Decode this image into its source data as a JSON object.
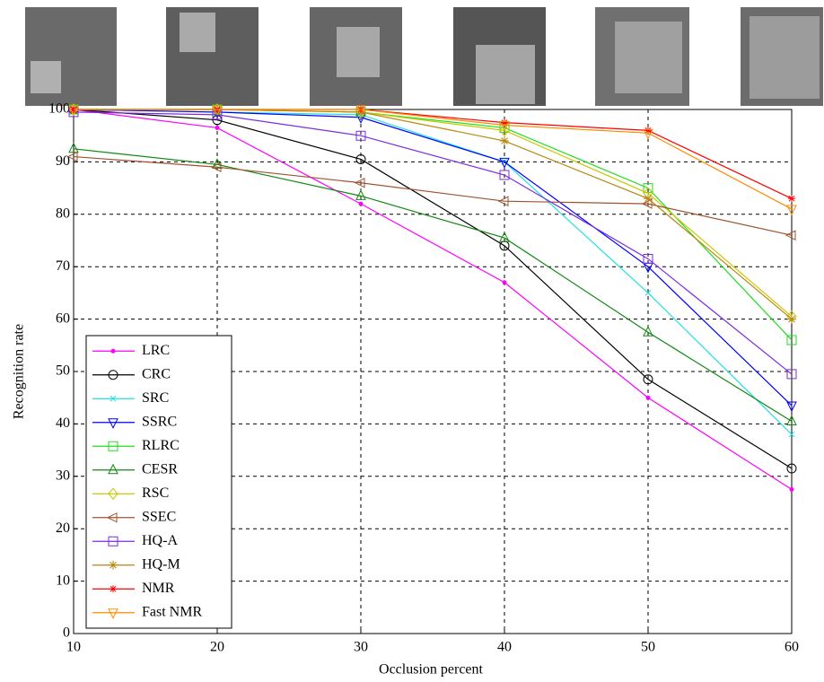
{
  "chart_data": {
    "type": "line",
    "xlabel": "Occlusion percent",
    "ylabel": "Recognition rate",
    "x": [
      10,
      20,
      30,
      40,
      50,
      60
    ],
    "xlim": [
      10,
      60
    ],
    "ylim": [
      0,
      100
    ],
    "xticks": [
      10,
      20,
      30,
      40,
      50,
      60
    ],
    "yticks": [
      0,
      10,
      20,
      30,
      40,
      50,
      60,
      70,
      80,
      90,
      100
    ],
    "grid": true,
    "legend": "lower left",
    "series": [
      {
        "name": "LRC",
        "color": "#ff00ff",
        "marker": "dot",
        "values": [
          100,
          96.5,
          82,
          67,
          45,
          27.5
        ]
      },
      {
        "name": "CRC",
        "color": "#000000",
        "marker": "circle",
        "values": [
          100,
          98,
          90.5,
          74,
          48.5,
          31.5
        ]
      },
      {
        "name": "SRC",
        "color": "#22e0e0",
        "marker": "x",
        "values": [
          100,
          99.5,
          99,
          90,
          65,
          38
        ]
      },
      {
        "name": "SSRC",
        "color": "#0000ff",
        "marker": "tri-down",
        "values": [
          100,
          99.5,
          98.5,
          90,
          70,
          43.5
        ]
      },
      {
        "name": "RLRC",
        "color": "#22dd22",
        "marker": "square",
        "values": [
          100,
          100,
          99.5,
          96.5,
          85,
          56
        ]
      },
      {
        "name": "CESR",
        "color": "#118811",
        "marker": "tri-up",
        "values": [
          92.5,
          89.5,
          83.5,
          75.5,
          57.5,
          40.5
        ]
      },
      {
        "name": "RSC",
        "color": "#c8c800",
        "marker": "diamond",
        "values": [
          100,
          100,
          99.5,
          96,
          84,
          60.5
        ]
      },
      {
        "name": "SSEC",
        "color": "#a0522d",
        "marker": "tri-left",
        "values": [
          91,
          89,
          86,
          82.5,
          82,
          76
        ]
      },
      {
        "name": "HQ-A",
        "color": "#7b2be0",
        "marker": "square",
        "values": [
          99.5,
          99,
          95,
          87.5,
          71.5,
          49.5
        ]
      },
      {
        "name": "HQ-M",
        "color": "#b8860b",
        "marker": "star",
        "values": [
          100,
          100,
          99.5,
          94,
          83,
          60
        ]
      },
      {
        "name": "NMR",
        "color": "#ff0000",
        "marker": "asterisk",
        "values": [
          100,
          100,
          100,
          97.5,
          96,
          83
        ]
      },
      {
        "name": "Fast NMR",
        "color": "#ff8c00",
        "marker": "tri-down",
        "values": [
          100,
          100,
          100,
          97,
          95.5,
          81
        ]
      }
    ]
  }
}
